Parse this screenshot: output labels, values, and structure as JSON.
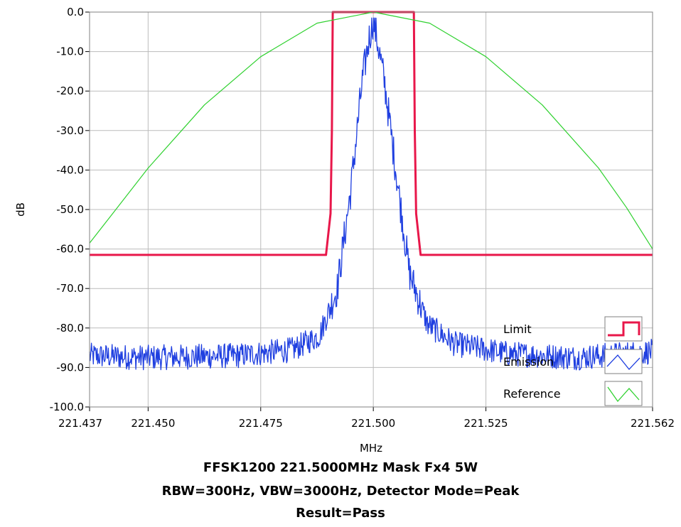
{
  "chart_data": {
    "type": "line",
    "title": "",
    "xlabel": "MHz",
    "ylabel": "dB",
    "xlim": [
      221.437,
      221.562
    ],
    "ylim": [
      -100,
      0
    ],
    "x_ticks": [
      221.437,
      221.45,
      221.475,
      221.5,
      221.525,
      221.562
    ],
    "x_tick_labels": [
      "221.437",
      "221.450",
      "221.475",
      "221.500",
      "221.525",
      "221.562"
    ],
    "y_ticks": [
      0,
      -10,
      -20,
      -30,
      -40,
      -50,
      -60,
      -70,
      -80,
      -90,
      -100
    ],
    "y_tick_labels": [
      "0.0",
      "-10.0",
      "-20.0",
      "-30.0",
      "-40.0",
      "-50.0",
      "-60.0",
      "-70.0",
      "-80.0",
      "-90.0",
      "-100.0"
    ],
    "grid": true,
    "legend_position": "bottom-right",
    "series": [
      {
        "name": "Limit",
        "color": "#e8174a",
        "x": [
          221.437,
          221.4895,
          221.4905,
          221.4908,
          221.491,
          221.509,
          221.5092,
          221.5095,
          221.5105,
          221.562
        ],
        "y": [
          -61.5,
          -61.5,
          -51,
          -30,
          0,
          0,
          -30,
          -51,
          -61.5,
          -61.5
        ]
      },
      {
        "name": "Emission",
        "color": "#1f3fe0",
        "x": [
          221.437,
          221.45,
          221.47,
          221.482,
          221.488,
          221.492,
          221.495,
          221.4975,
          221.499,
          221.5,
          221.501,
          221.5025,
          221.505,
          221.508,
          221.512,
          221.518,
          221.53,
          221.545,
          221.562
        ],
        "y": [
          -87,
          -87.5,
          -87,
          -85.5,
          -82,
          -70,
          -45,
          -18,
          -7,
          -2,
          -8,
          -18,
          -40,
          -66,
          -79,
          -84,
          -86.5,
          -87.5,
          -86
        ]
      },
      {
        "name": "Reference",
        "color": "#2fd12f",
        "x": [
          221.437,
          221.4425,
          221.45,
          221.4625,
          221.475,
          221.4875,
          221.5,
          221.5125,
          221.525,
          221.5375,
          221.55,
          221.5562,
          221.562
        ],
        "y": [
          -58.5,
          -50.5,
          -39.5,
          -23.5,
          -11.3,
          -2.8,
          0,
          -2.8,
          -11.3,
          -23.5,
          -39.5,
          -49.5,
          -60
        ]
      }
    ]
  },
  "caption": {
    "line1": "FFSK1200  221.5000MHz  Mask Fx4  5W",
    "line2": "RBW=300Hz, VBW=3000Hz, Detector Mode=Peak",
    "line3": "Result=Pass"
  }
}
